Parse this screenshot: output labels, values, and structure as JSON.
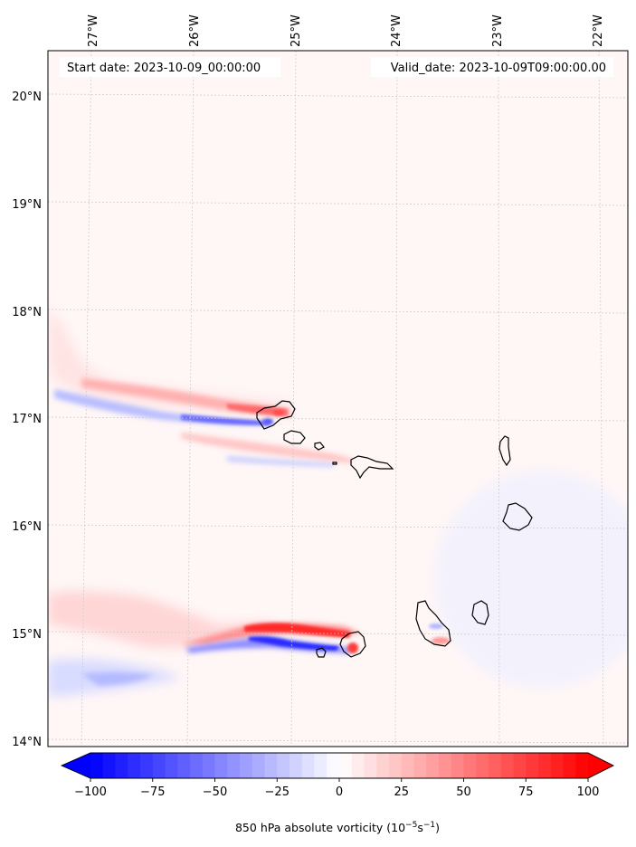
{
  "map": {
    "start_date": "Start date: 2023-10-09_00:00:00",
    "valid_date": "Valid_date: 2023-10-09T09:00:00.00",
    "lon_labels": [
      "27°W",
      "26°W",
      "25°W",
      "24°W",
      "23°W",
      "22°W"
    ],
    "lat_labels": [
      "20°N",
      "19°N",
      "18°N",
      "17°N",
      "16°N",
      "15°N",
      "14°N"
    ],
    "colors": {
      "negative": "#0000ff",
      "positive": "#ff0000",
      "background_tint": "#fff5f5",
      "coastline": "#000000",
      "gridline": "#c8c8c8"
    }
  },
  "colorbar": {
    "title_prefix": "850 hPa absolute vorticity (10",
    "title_exp1": "−5",
    "title_mid": "s",
    "title_exp2": "−1",
    "title_suffix": ")",
    "ticks": [
      "−100",
      "−75",
      "−50",
      "−25",
      "0",
      "25",
      "50",
      "75",
      "100"
    ],
    "min": -100,
    "max": 100,
    "extend": "both"
  }
}
